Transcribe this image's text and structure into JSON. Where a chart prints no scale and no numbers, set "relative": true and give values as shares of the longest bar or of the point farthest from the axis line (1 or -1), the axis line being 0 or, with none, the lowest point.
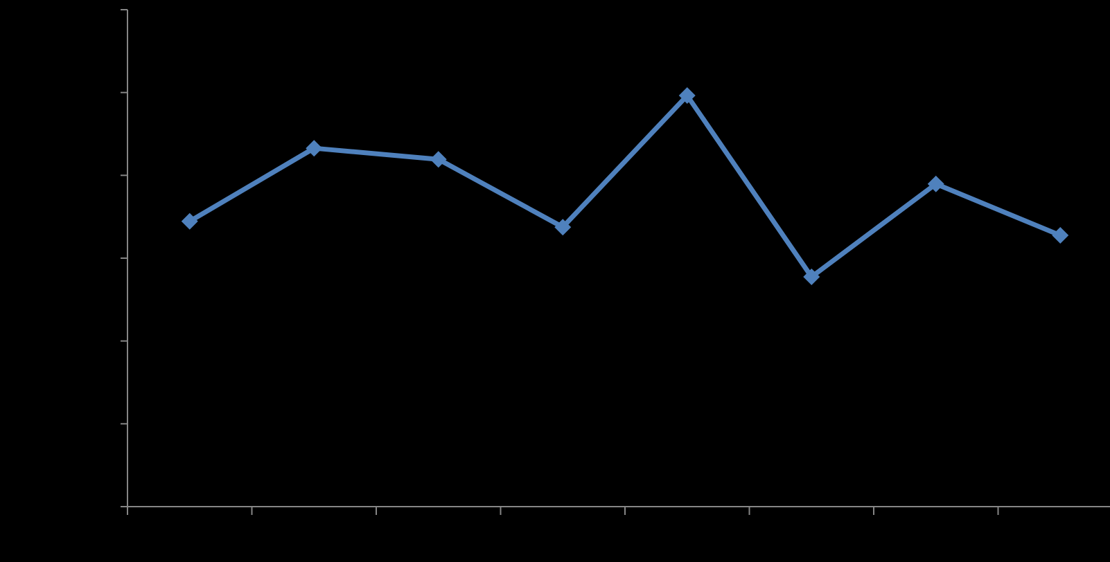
{
  "chart_data": {
    "type": "line",
    "relative": true,
    "categories": [
      null,
      null,
      null,
      null,
      null,
      null,
      null,
      null
    ],
    "series": [
      {
        "color": "#4f81bd",
        "values": [
          0.694,
          0.872,
          0.845,
          0.68,
          1,
          0.559,
          0.785,
          0.66
        ]
      }
    ],
    "marker": "diamond",
    "line_style": "solid",
    "grid": false
  }
}
